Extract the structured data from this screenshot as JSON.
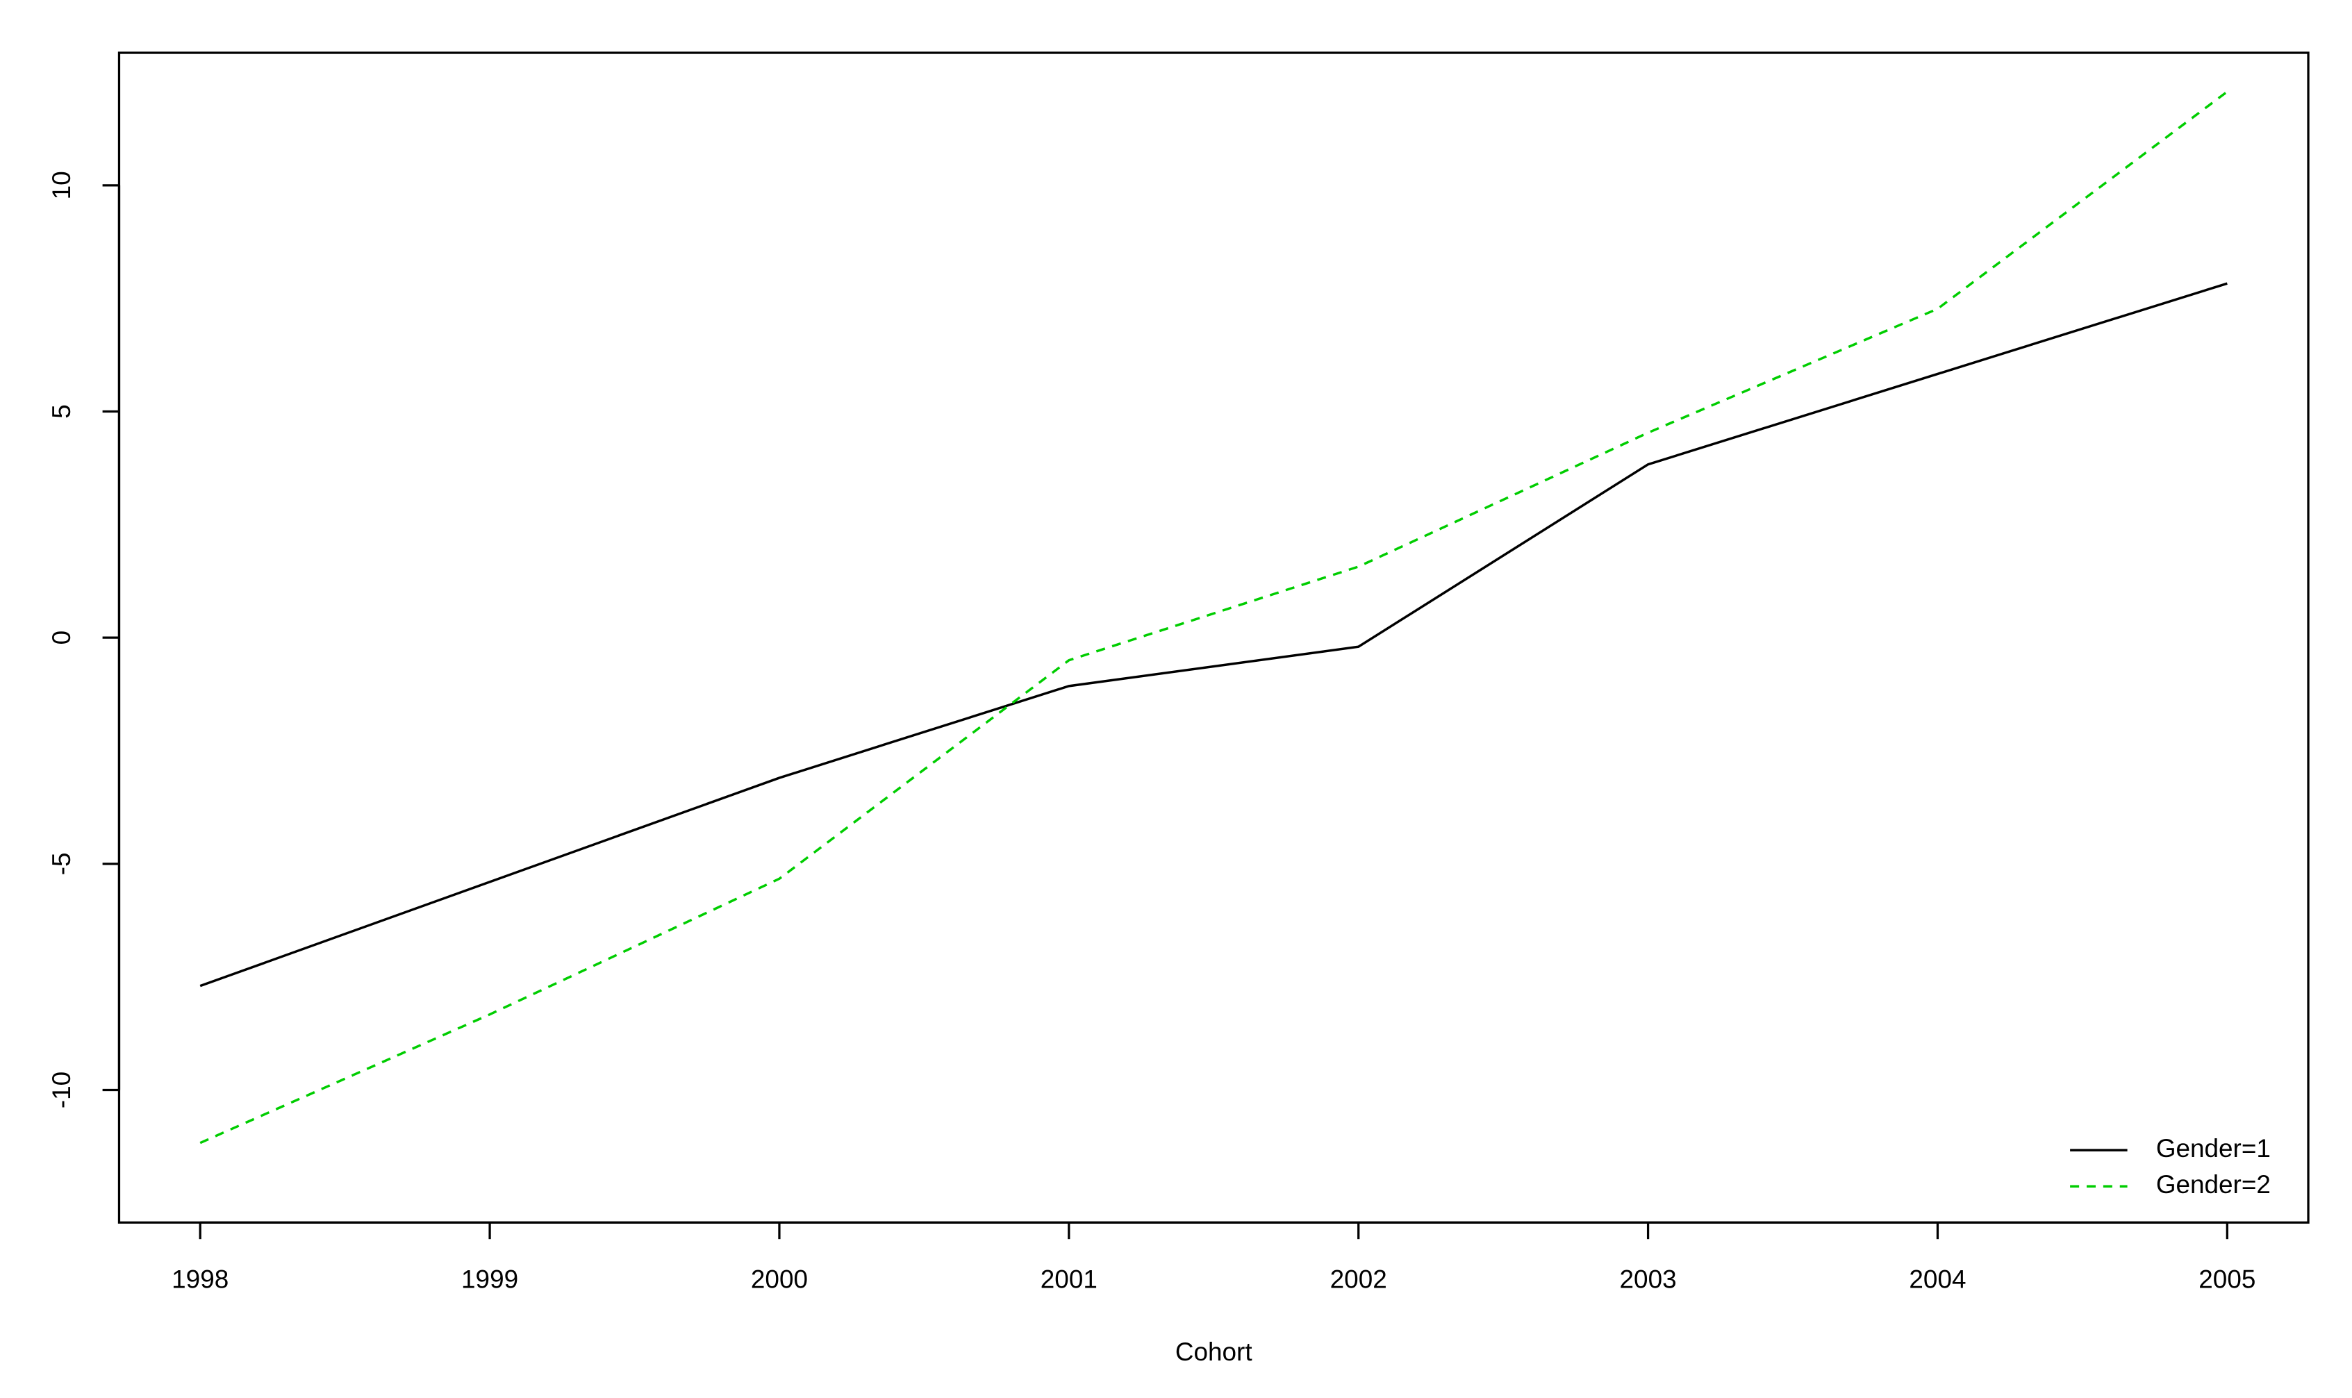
{
  "chart_data": {
    "type": "line",
    "xlabel": "Cohort",
    "x": [
      1998,
      1999,
      2000,
      2001,
      2002,
      2003,
      2004,
      2005
    ],
    "series": [
      {
        "name": "Gender=1",
        "color": "#000000",
        "linestyle": "solid",
        "values": [
          -7.7,
          -5.4,
          -3.1,
          -1.07,
          -0.2,
          3.83,
          5.83,
          7.83
        ]
      },
      {
        "name": "Gender=2",
        "color": "#00cd00",
        "linestyle": "dashed",
        "values": [
          -11.17,
          -8.33,
          -5.33,
          -0.5,
          1.57,
          4.53,
          7.27,
          12.07
        ]
      }
    ],
    "xlim": [
      1997.72,
      2005.28
    ],
    "ylim": [
      -12.93,
      12.93
    ],
    "xticks": [
      1998,
      1999,
      2000,
      2001,
      2002,
      2003,
      2004,
      2005
    ],
    "yticks": [
      -10,
      -5,
      0,
      5,
      10
    ],
    "legend": "bottomright"
  }
}
